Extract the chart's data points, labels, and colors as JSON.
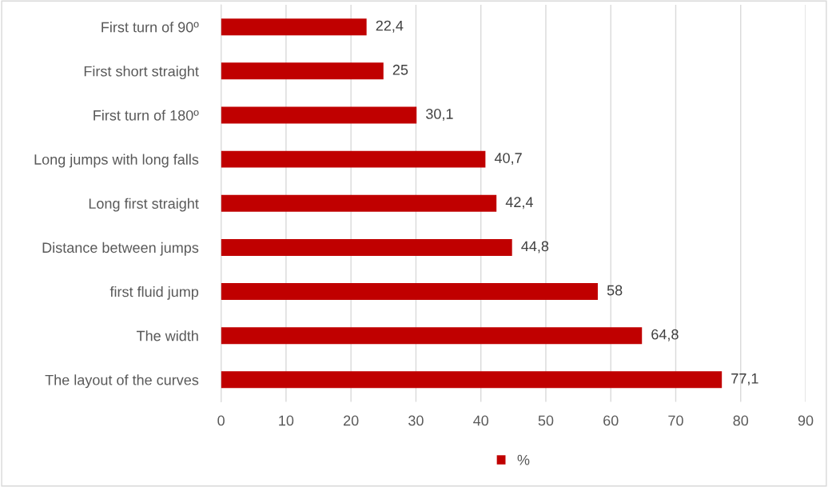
{
  "chart_data": {
    "type": "bar",
    "orientation": "horizontal",
    "categories": [
      "First turn of 90º",
      "First short straight",
      "First turn of 180º",
      "Long jumps with long falls",
      "Long first straight",
      "Distance between jumps",
      "first fluid jump",
      "The width",
      "The layout of the curves"
    ],
    "series": [
      {
        "name": "%",
        "color": "#c00000",
        "values": [
          22.4,
          25,
          30.1,
          40.7,
          42.4,
          44.8,
          58,
          64.8,
          77.1
        ],
        "value_labels": [
          "22,4",
          "25",
          "30,1",
          "40,7",
          "42,4",
          "44,8",
          "58",
          "64,8",
          "77,1"
        ]
      }
    ],
    "xlim": [
      0,
      90
    ],
    "xticks": [
      0,
      10,
      20,
      30,
      40,
      50,
      60,
      70,
      80,
      90
    ],
    "grid": "x",
    "legend": "bottom"
  }
}
